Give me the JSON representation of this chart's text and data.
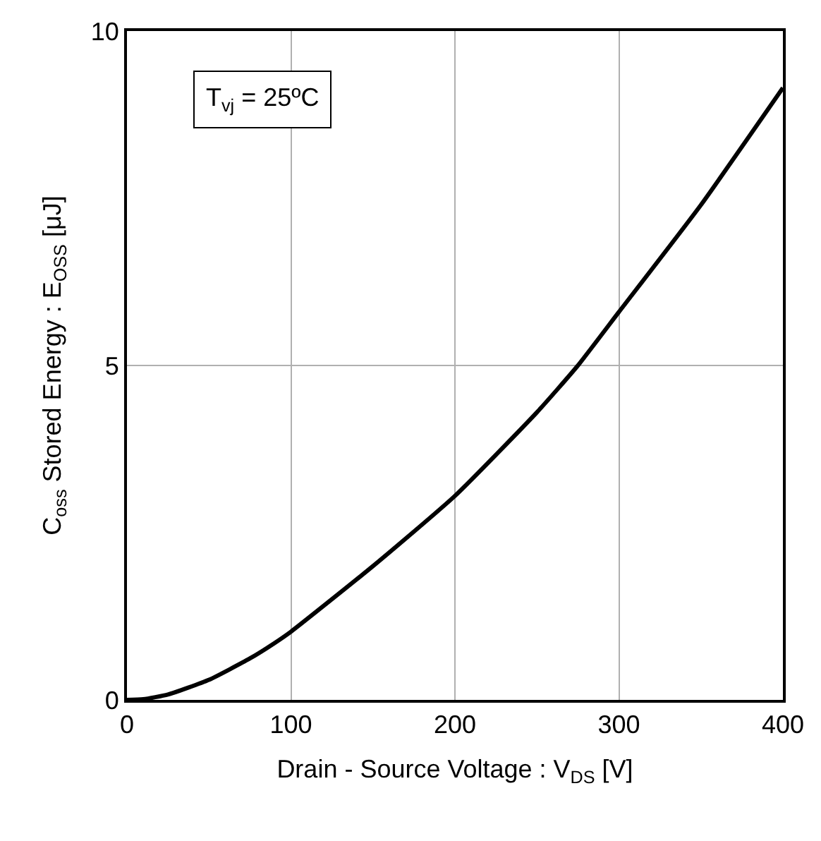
{
  "chart_data": {
    "type": "line",
    "xlabel": "Drain - Source Voltage : V$_{DS}$ [V]",
    "ylabel": "C$_{oss}$ Stored Energy : E$_{OSS}$ [μJ]",
    "annotations": [
      "T$_{vj}$ = 25ºC"
    ],
    "x": [
      0,
      10,
      25,
      50,
      75,
      90,
      100,
      150,
      200,
      250,
      275,
      300,
      350,
      400
    ],
    "series": [
      {
        "color": "#000000",
        "values": [
          0,
          0.01,
          0.08,
          0.3,
          0.62,
          0.85,
          1.02,
          2.0,
          3.05,
          4.3,
          5.0,
          5.8,
          7.4,
          9.15
        ]
      }
    ],
    "xlim": [
      0,
      400
    ],
    "xticks": [
      0,
      100,
      200,
      300,
      400
    ],
    "ylim": [
      0,
      10
    ],
    "yticks": [
      0,
      5,
      10
    ],
    "grid": true,
    "marker": "none",
    "line_style": "solid"
  }
}
